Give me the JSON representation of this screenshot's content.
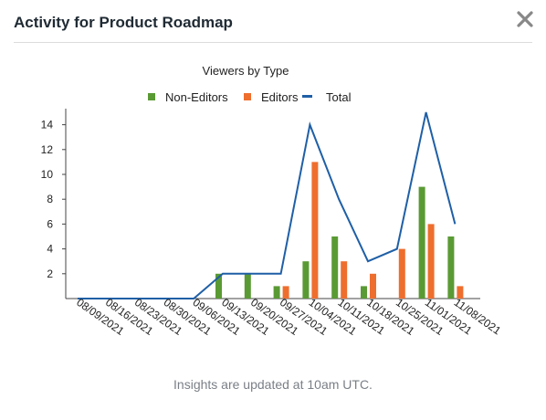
{
  "dialog": {
    "title": "Activity for Product Roadmap",
    "footer_note": "Insights are updated at 10am UTC."
  },
  "icons": {
    "close": "close-icon"
  },
  "colors": {
    "non_editors": "#5a9a34",
    "editors": "#ee6e2e",
    "total": "#1f5fa6",
    "axis": "#444444"
  },
  "chart_data": {
    "type": "bar",
    "title": "Viewers by Type",
    "xlabel": "",
    "ylabel": "",
    "ylim": [
      0,
      15
    ],
    "yticks": [
      2,
      4,
      6,
      8,
      10,
      12,
      14
    ],
    "legend_position": "top-center",
    "categories": [
      "08/09/2021",
      "08/16/2021",
      "08/23/2021",
      "08/30/2021",
      "09/06/2021",
      "09/13/2021",
      "09/20/2021",
      "09/27/2021",
      "10/04/2021",
      "10/11/2021",
      "10/18/2021",
      "10/25/2021",
      "11/01/2021",
      "11/08/2021"
    ],
    "series": [
      {
        "name": "Non-Editors",
        "type": "bar",
        "values": [
          0,
          0,
          0,
          0,
          0,
          2,
          2,
          1,
          3,
          5,
          1,
          0,
          9,
          5
        ]
      },
      {
        "name": "Editors",
        "type": "bar",
        "values": [
          0,
          0,
          0,
          0,
          0,
          0,
          0,
          1,
          11,
          3,
          2,
          4,
          6,
          1
        ]
      },
      {
        "name": "Total",
        "type": "line",
        "values": [
          0,
          0,
          0,
          0,
          0,
          2,
          2,
          2,
          14,
          8,
          3,
          4,
          15,
          6
        ]
      }
    ]
  }
}
